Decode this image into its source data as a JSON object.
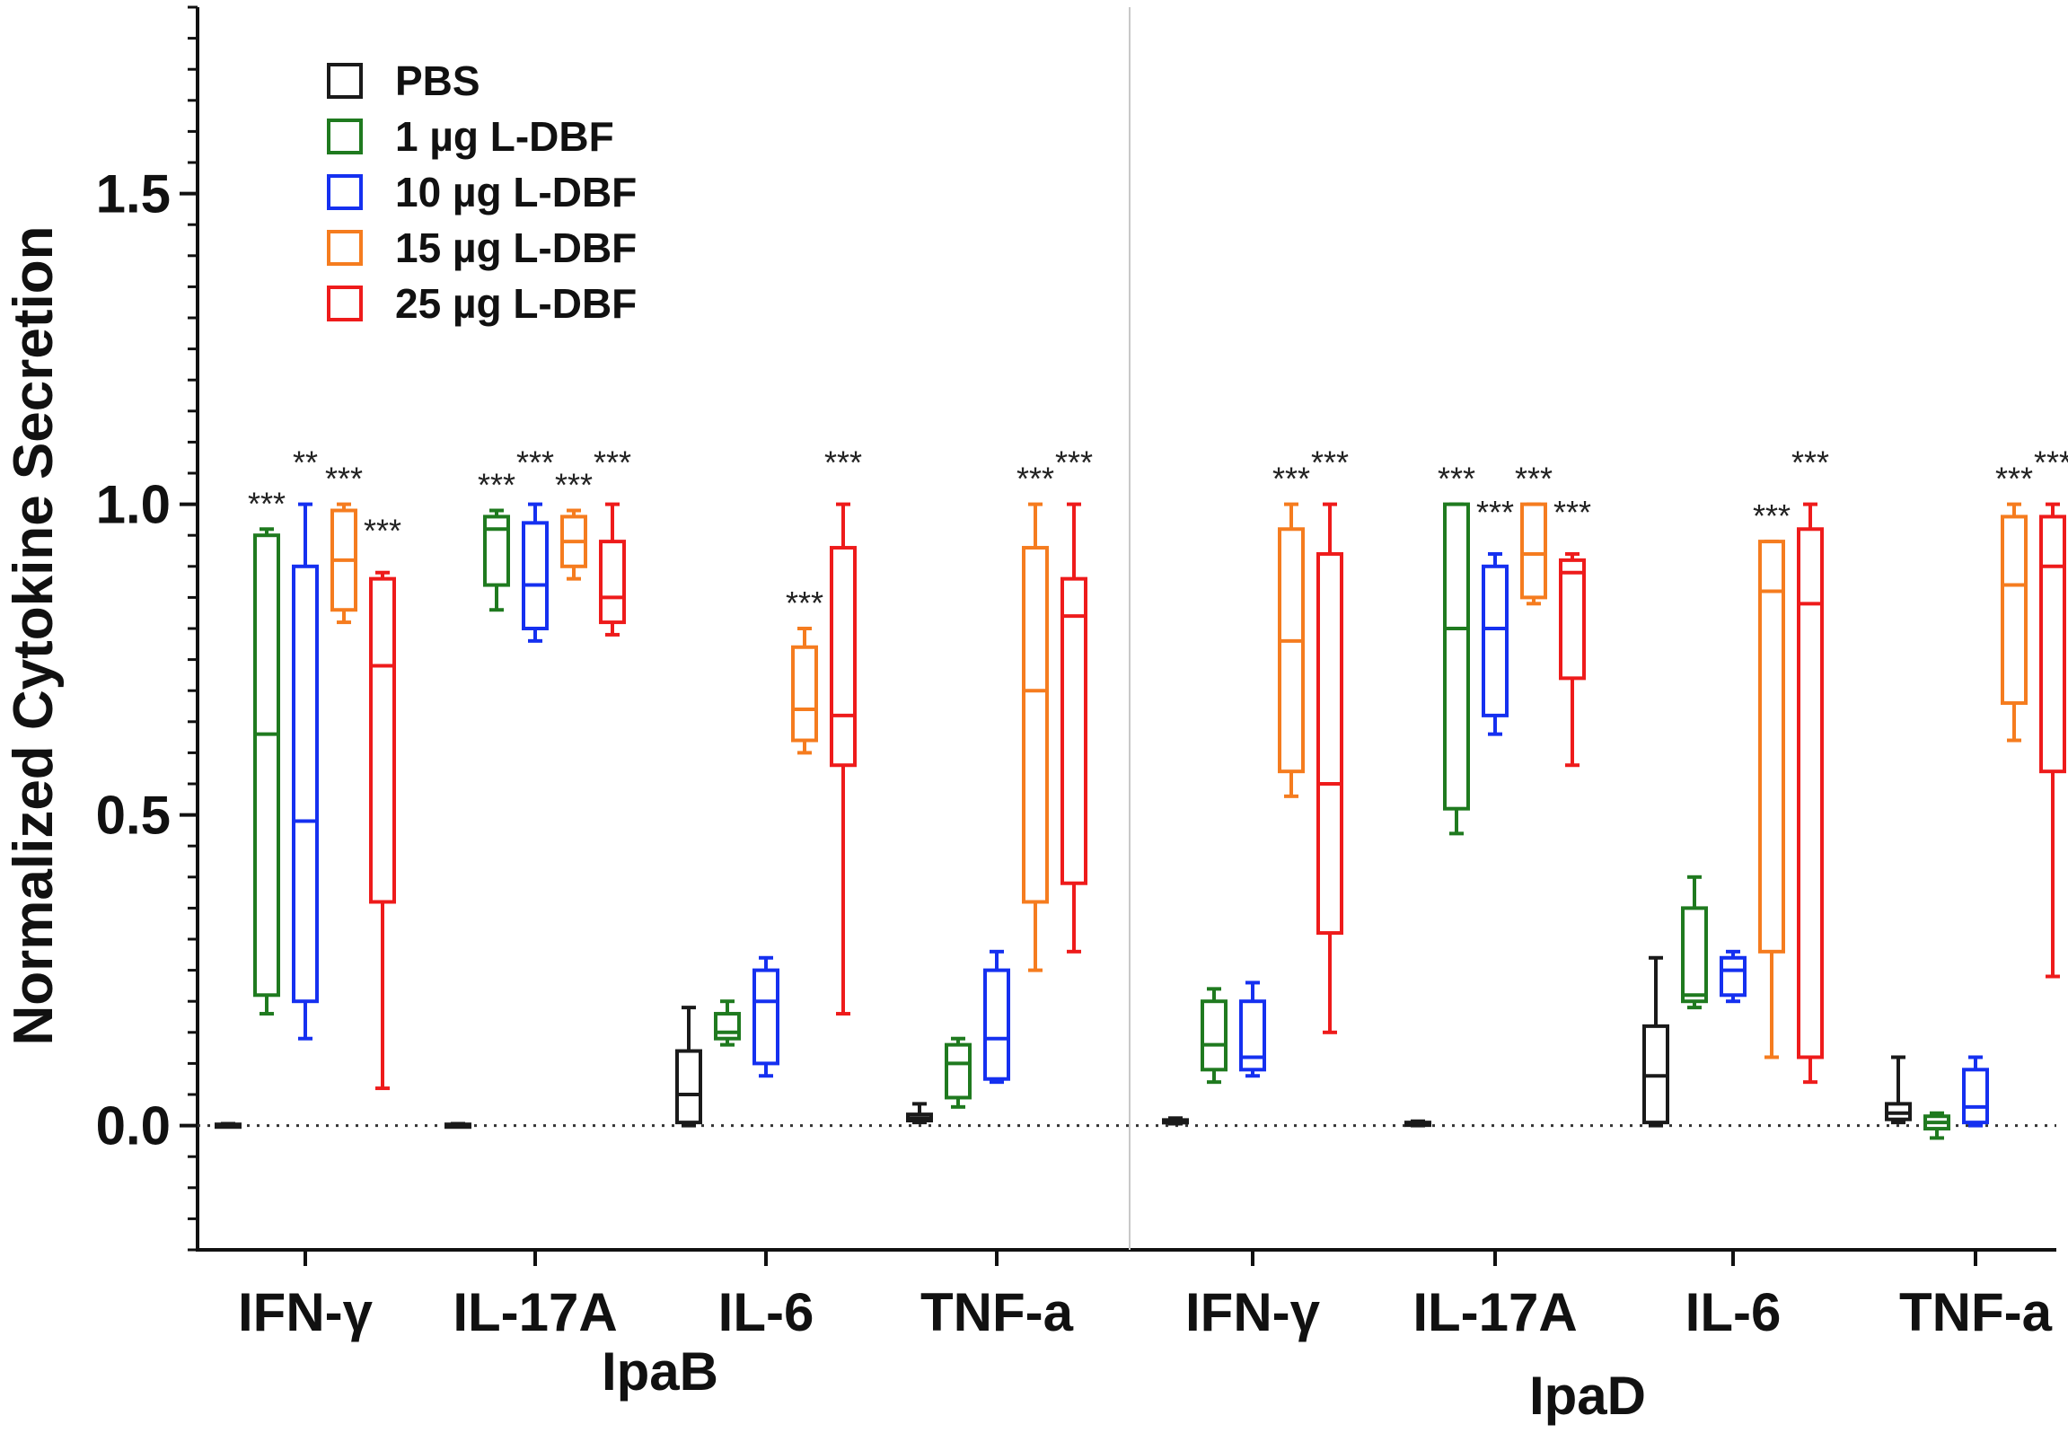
{
  "chart_data": {
    "type": "box",
    "title": "",
    "ylabel": "Normalized Cytokine Secretion",
    "ylim": [
      -0.2,
      1.8
    ],
    "yticks": [
      "0.0",
      "0.5",
      "1.0",
      "1.5"
    ],
    "ytick_values": [
      0.0,
      0.5,
      1.0,
      1.5
    ],
    "reference_line_y": 0.0,
    "groups": [
      {
        "label": "IpaB",
        "categories": [
          "IFN-γ",
          "IL-17A",
          "IL-6",
          "TNF-a"
        ]
      },
      {
        "label": "IpaD",
        "categories": [
          "IFN-γ",
          "IL-17A",
          "IL-6",
          "TNF-a"
        ]
      }
    ],
    "series": [
      {
        "name": "PBS",
        "color": "#1a1a1a",
        "boxes": [
          {
            "min": 0.0,
            "q1": 0.0,
            "median": 0.0,
            "q3": 0.002,
            "max": 0.003,
            "sig": ""
          },
          {
            "min": 0.0,
            "q1": 0.0,
            "median": 0.0,
            "q3": 0.002,
            "max": 0.003,
            "sig": ""
          },
          {
            "min": 0.0,
            "q1": 0.005,
            "median": 0.05,
            "q3": 0.12,
            "max": 0.19,
            "sig": ""
          },
          {
            "min": 0.005,
            "q1": 0.008,
            "median": 0.012,
            "q3": 0.018,
            "max": 0.035,
            "sig": ""
          },
          {
            "min": 0.003,
            "q1": 0.005,
            "median": 0.007,
            "q3": 0.009,
            "max": 0.012,
            "sig": ""
          },
          {
            "min": 0.0,
            "q1": 0.002,
            "median": 0.003,
            "q3": 0.005,
            "max": 0.007,
            "sig": ""
          },
          {
            "min": 0.0,
            "q1": 0.005,
            "median": 0.08,
            "q3": 0.16,
            "max": 0.27,
            "sig": ""
          },
          {
            "min": 0.005,
            "q1": 0.01,
            "median": 0.02,
            "q3": 0.035,
            "max": 0.11,
            "sig": ""
          }
        ]
      },
      {
        "name": "1 µg L-DBF",
        "color": "#1f7a1f",
        "boxes": [
          {
            "min": 0.18,
            "q1": 0.21,
            "median": 0.63,
            "q3": 0.95,
            "max": 0.96,
            "sig": "***"
          },
          {
            "min": 0.83,
            "q1": 0.87,
            "median": 0.96,
            "q3": 0.98,
            "max": 0.99,
            "sig": "***"
          },
          {
            "min": 0.13,
            "q1": 0.14,
            "median": 0.15,
            "q3": 0.18,
            "max": 0.2,
            "sig": ""
          },
          {
            "min": 0.03,
            "q1": 0.045,
            "median": 0.1,
            "q3": 0.13,
            "max": 0.14,
            "sig": ""
          },
          {
            "min": 0.07,
            "q1": 0.09,
            "median": 0.13,
            "q3": 0.2,
            "max": 0.22,
            "sig": ""
          },
          {
            "min": 0.47,
            "q1": 0.51,
            "median": 0.8,
            "q3": 1.0,
            "max": 1.0,
            "sig": "***"
          },
          {
            "min": 0.19,
            "q1": 0.2,
            "median": 0.21,
            "q3": 0.35,
            "max": 0.4,
            "sig": ""
          },
          {
            "min": -0.02,
            "q1": -0.005,
            "median": 0.005,
            "q3": 0.015,
            "max": 0.02,
            "sig": ""
          }
        ]
      },
      {
        "name": "10 µg L-DBF",
        "color": "#1530f0",
        "boxes": [
          {
            "min": 0.14,
            "q1": 0.2,
            "median": 0.49,
            "q3": 0.9,
            "max": 1.0,
            "sig": "**"
          },
          {
            "min": 0.78,
            "q1": 0.8,
            "median": 0.87,
            "q3": 0.97,
            "max": 1.0,
            "sig": "***"
          },
          {
            "min": 0.08,
            "q1": 0.1,
            "median": 0.2,
            "q3": 0.25,
            "max": 0.27,
            "sig": ""
          },
          {
            "min": 0.07,
            "q1": 0.075,
            "median": 0.14,
            "q3": 0.25,
            "max": 0.28,
            "sig": ""
          },
          {
            "min": 0.08,
            "q1": 0.09,
            "median": 0.11,
            "q3": 0.2,
            "max": 0.23,
            "sig": ""
          },
          {
            "min": 0.63,
            "q1": 0.66,
            "median": 0.8,
            "q3": 0.9,
            "max": 0.92,
            "sig": "***"
          },
          {
            "min": 0.2,
            "q1": 0.21,
            "median": 0.25,
            "q3": 0.27,
            "max": 0.28,
            "sig": ""
          },
          {
            "min": 0.0,
            "q1": 0.005,
            "median": 0.03,
            "q3": 0.09,
            "max": 0.11,
            "sig": ""
          }
        ]
      },
      {
        "name": "15 µg L-DBF",
        "color": "#f57c1f",
        "boxes": [
          {
            "min": 0.81,
            "q1": 0.83,
            "median": 0.91,
            "q3": 0.99,
            "max": 1.0,
            "sig": "***"
          },
          {
            "min": 0.88,
            "q1": 0.9,
            "median": 0.94,
            "q3": 0.98,
            "max": 0.99,
            "sig": "***"
          },
          {
            "min": 0.6,
            "q1": 0.62,
            "median": 0.67,
            "q3": 0.77,
            "max": 0.8,
            "sig": "***"
          },
          {
            "min": 0.25,
            "q1": 0.36,
            "median": 0.7,
            "q3": 0.93,
            "max": 1.0,
            "sig": "***"
          },
          {
            "min": 0.53,
            "q1": 0.57,
            "median": 0.78,
            "q3": 0.96,
            "max": 1.0,
            "sig": "***"
          },
          {
            "min": 0.84,
            "q1": 0.85,
            "median": 0.92,
            "q3": 1.0,
            "max": 1.0,
            "sig": "***"
          },
          {
            "min": 0.11,
            "q1": 0.28,
            "median": 0.86,
            "q3": 0.94,
            "max": 0.94,
            "sig": "***"
          },
          {
            "min": 0.62,
            "q1": 0.68,
            "median": 0.87,
            "q3": 0.98,
            "max": 1.0,
            "sig": "***"
          }
        ]
      },
      {
        "name": "25 µg L-DBF",
        "color": "#ee1b1b",
        "boxes": [
          {
            "min": 0.06,
            "q1": 0.36,
            "median": 0.74,
            "q3": 0.88,
            "max": 0.89,
            "sig": "***"
          },
          {
            "min": 0.79,
            "q1": 0.81,
            "median": 0.85,
            "q3": 0.94,
            "max": 1.0,
            "sig": "***"
          },
          {
            "min": 0.18,
            "q1": 0.58,
            "median": 0.66,
            "q3": 0.93,
            "max": 1.0,
            "sig": "***"
          },
          {
            "min": 0.28,
            "q1": 0.39,
            "median": 0.82,
            "q3": 0.88,
            "max": 1.0,
            "sig": "***"
          },
          {
            "min": 0.15,
            "q1": 0.31,
            "median": 0.55,
            "q3": 0.92,
            "max": 1.0,
            "sig": "***"
          },
          {
            "min": 0.58,
            "q1": 0.72,
            "median": 0.89,
            "q3": 0.91,
            "max": 0.92,
            "sig": "***"
          },
          {
            "min": 0.07,
            "q1": 0.11,
            "median": 0.84,
            "q3": 0.96,
            "max": 1.0,
            "sig": "***"
          },
          {
            "min": 0.24,
            "q1": 0.57,
            "median": 0.9,
            "q3": 0.98,
            "max": 1.0,
            "sig": "***"
          }
        ]
      }
    ]
  }
}
